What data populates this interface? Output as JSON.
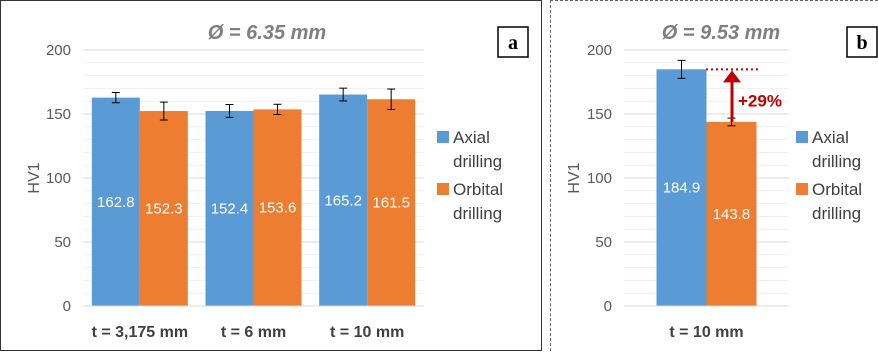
{
  "chart_data": [
    {
      "panel": "a",
      "type": "bar",
      "title": "Ø = 6.35 mm",
      "ylabel": "HV1",
      "ylim": [
        0,
        200
      ],
      "yticks": [
        0,
        50,
        100,
        150,
        200
      ],
      "categories": [
        "t = 3,175 mm",
        "t = 6 mm",
        "t = 10 mm"
      ],
      "series": [
        {
          "name": "Axial drilling",
          "values": [
            162.8,
            152.4,
            165.2
          ],
          "labels": [
            "162.8",
            "152.4",
            "165.2"
          ],
          "error": [
            4,
            5,
            5
          ],
          "color": "#5b9bd5"
        },
        {
          "name": "Orbital drilling",
          "values": [
            152.3,
            153.6,
            161.5
          ],
          "labels": [
            "152.3",
            "153.6",
            "161.5"
          ],
          "error": [
            7,
            4,
            8
          ],
          "color": "#ed7d31"
        }
      ],
      "legend_lines": [
        [
          "Axial",
          "drilling"
        ],
        [
          "Orbital",
          "drilling"
        ]
      ],
      "legend": "right",
      "grid": true
    },
    {
      "panel": "b",
      "type": "bar",
      "title": "Ø = 9.53 mm",
      "ylabel": "HV1",
      "ylim": [
        0,
        200
      ],
      "yticks": [
        0,
        50,
        100,
        150,
        200
      ],
      "categories": [
        "t = 10 mm"
      ],
      "series": [
        {
          "name": "Axial drilling",
          "values": [
            184.9
          ],
          "labels": [
            "184.9"
          ],
          "error": [
            7
          ],
          "color": "#5b9bd5"
        },
        {
          "name": "Orbital drilling",
          "values": [
            143.8
          ],
          "labels": [
            "143.8"
          ],
          "error": [
            3
          ],
          "color": "#ed7d31"
        }
      ],
      "annotation": "+29%",
      "legend_lines": [
        [
          "Axial",
          "drilling"
        ],
        [
          "Orbital",
          "drilling"
        ]
      ],
      "legend": "right",
      "grid": true
    }
  ],
  "panel_labels": [
    "a",
    "b"
  ],
  "colors": {
    "axial": "#5b9bd5",
    "orbital": "#ed7d31",
    "annotation": "#c00000"
  }
}
